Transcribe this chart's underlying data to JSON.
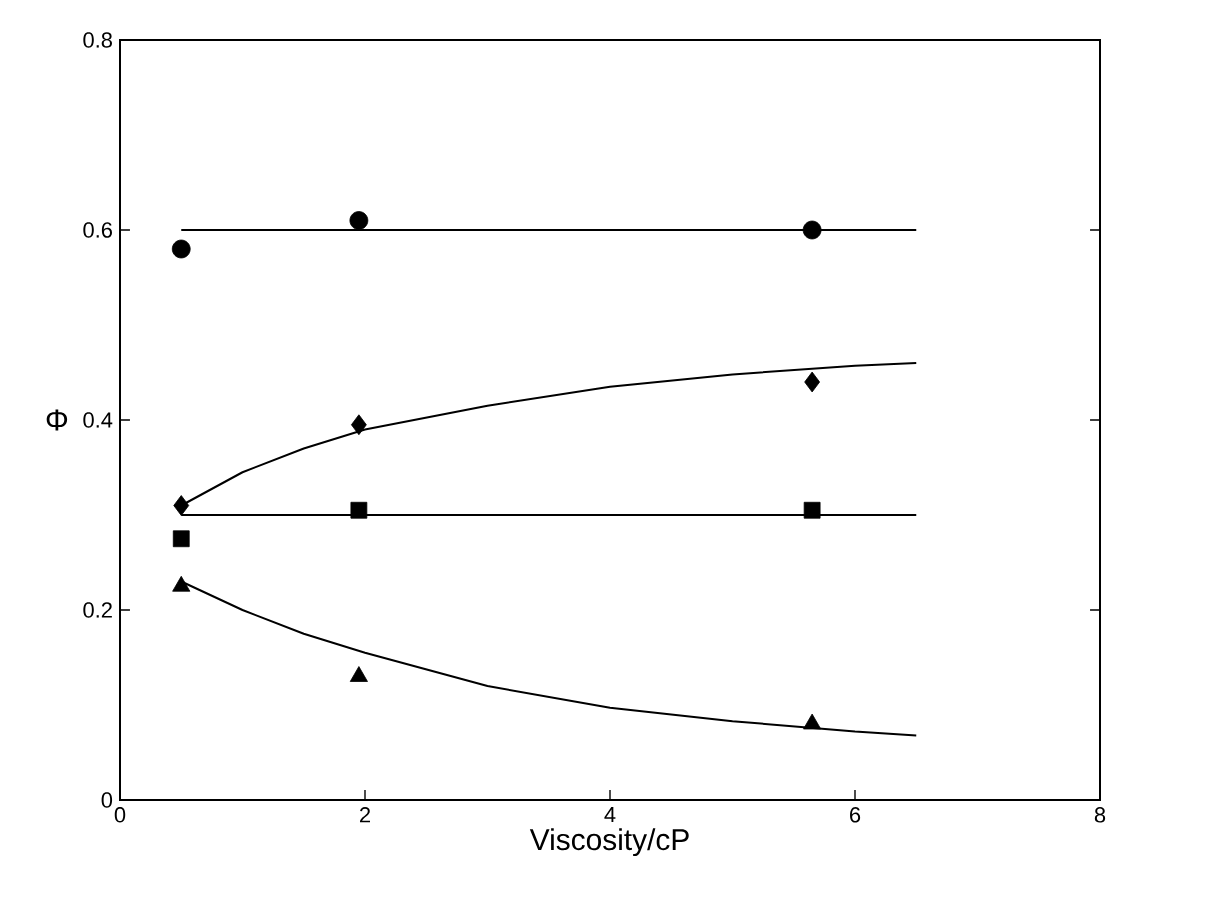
{
  "chart_data": {
    "type": "scatter",
    "xlabel": "Viscosity/cP",
    "ylabel": "Φ",
    "xlim": [
      0,
      8
    ],
    "ylim": [
      0,
      0.8
    ],
    "xticks": [
      0,
      2,
      4,
      6,
      8
    ],
    "yticks": [
      0,
      0.2,
      0.4,
      0.6,
      0.8
    ],
    "grid": false,
    "series": [
      {
        "marker": "circle",
        "color": "#000000",
        "x": [
          0.5,
          1.95,
          5.65
        ],
        "values": [
          0.58,
          0.61,
          0.6
        ]
      },
      {
        "marker": "diamond",
        "color": "#000000",
        "x": [
          0.5,
          1.95,
          5.65
        ],
        "values": [
          0.31,
          0.395,
          0.44
        ]
      },
      {
        "marker": "square",
        "color": "#000000",
        "x": [
          0.5,
          1.95,
          5.65
        ],
        "values": [
          0.275,
          0.305,
          0.305
        ]
      },
      {
        "marker": "triangle",
        "color": "#000000",
        "x": [
          0.5,
          1.95,
          5.65
        ],
        "values": [
          0.225,
          0.13,
          0.08
        ]
      },
      {
        "type": "line",
        "marker": "none",
        "color": "#000000",
        "x": [
          0.5,
          6.5
        ],
        "values": [
          0.6,
          0.6
        ]
      },
      {
        "type": "line",
        "marker": "none",
        "color": "#000000",
        "x": [
          0.5,
          6.5
        ],
        "values": [
          0.3,
          0.3
        ]
      },
      {
        "type": "line",
        "marker": "none",
        "color": "#000000",
        "x": [
          0.5,
          1,
          1.5,
          2,
          3,
          4,
          5,
          6,
          6.5
        ],
        "values": [
          0.31,
          0.345,
          0.37,
          0.39,
          0.415,
          0.435,
          0.448,
          0.457,
          0.46
        ]
      },
      {
        "type": "line",
        "marker": "none",
        "color": "#000000",
        "x": [
          0.5,
          1,
          1.5,
          2,
          3,
          4,
          5,
          6,
          6.5
        ],
        "values": [
          0.23,
          0.2,
          0.175,
          0.155,
          0.12,
          0.097,
          0.083,
          0.072,
          0.068
        ]
      }
    ]
  }
}
